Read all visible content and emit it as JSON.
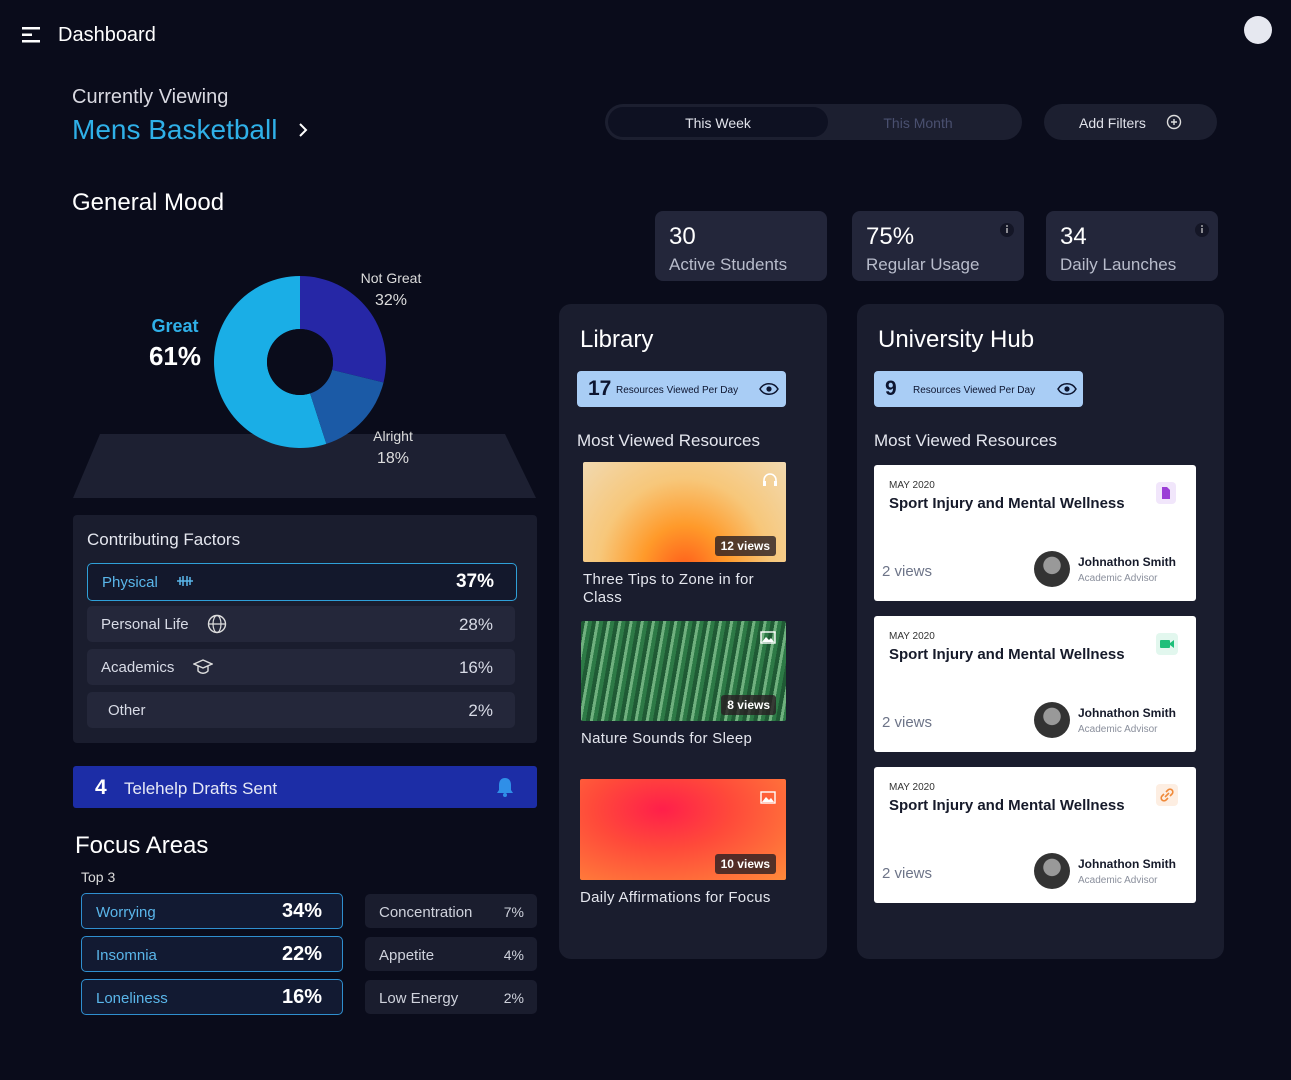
{
  "header": {
    "title": "Dashboard"
  },
  "viewing": {
    "label": "Currently Viewing",
    "team": "Mens Basketball"
  },
  "period_tabs": [
    "This Week",
    "This Month"
  ],
  "filters_button": "Add Filters",
  "general_mood": {
    "title": "General Mood",
    "type": "pie",
    "categories": [
      "Great",
      "Not Great",
      "Alright"
    ],
    "values": [
      61,
      32,
      18
    ],
    "value_labels": [
      "61%",
      "32%",
      "18%"
    ],
    "colors": [
      "#1aaee6",
      "#2627a6",
      "#1b5aa6"
    ]
  },
  "stats": [
    {
      "value": "30",
      "label": "Active Students"
    },
    {
      "value": "75%",
      "label": "Regular Usage"
    },
    {
      "value": "34",
      "label": "Daily Launches"
    }
  ],
  "contributing_factors": {
    "title": "Contributing Factors",
    "rows": [
      {
        "name": "Physical",
        "value": "37%"
      },
      {
        "name": "Personal Life",
        "value": "28%"
      },
      {
        "name": "Academics",
        "value": "16%"
      },
      {
        "name": "Other",
        "value": "2%"
      }
    ]
  },
  "telehelp": {
    "count": "4",
    "label": "Telehelp Drafts Sent"
  },
  "focus_areas": {
    "title": "Focus Areas",
    "subtitle": "Top 3",
    "top": [
      {
        "name": "Worrying",
        "value": "34%"
      },
      {
        "name": "Insomnia",
        "value": "22%"
      },
      {
        "name": "Loneliness",
        "value": "16%"
      }
    ],
    "others": [
      {
        "name": "Concentration",
        "value": "7%"
      },
      {
        "name": "Appetite",
        "value": "4%"
      },
      {
        "name": "Low Energy",
        "value": "2%"
      }
    ]
  },
  "library": {
    "title": "Library",
    "count": "17",
    "count_label": "Resources Viewed Per Day",
    "section": "Most Viewed Resources",
    "items": [
      {
        "views": "12 views",
        "title": "Three Tips to Zone in for Class"
      },
      {
        "views": "8 views",
        "title": "Nature Sounds for Sleep"
      },
      {
        "views": "10 views",
        "title": "Daily Affirmations for Focus"
      }
    ]
  },
  "university_hub": {
    "title": "University Hub",
    "count": "9",
    "count_label": "Resources Viewed Per Day",
    "section": "Most Viewed Resources",
    "items": [
      {
        "date": "MAY 2020",
        "title": "Sport Injury and Mental Wellness",
        "views": "2 views",
        "person": "Johnathon Smith",
        "role": "Academic Advisor"
      },
      {
        "date": "MAY 2020",
        "title": "Sport Injury and Mental Wellness",
        "views": "2 views",
        "person": "Johnathon Smith",
        "role": "Academic Advisor"
      },
      {
        "date": "MAY 2020",
        "title": "Sport Injury and Mental Wellness",
        "views": "2 views",
        "person": "Johnathon Smith",
        "role": "Academic Advisor"
      }
    ]
  }
}
